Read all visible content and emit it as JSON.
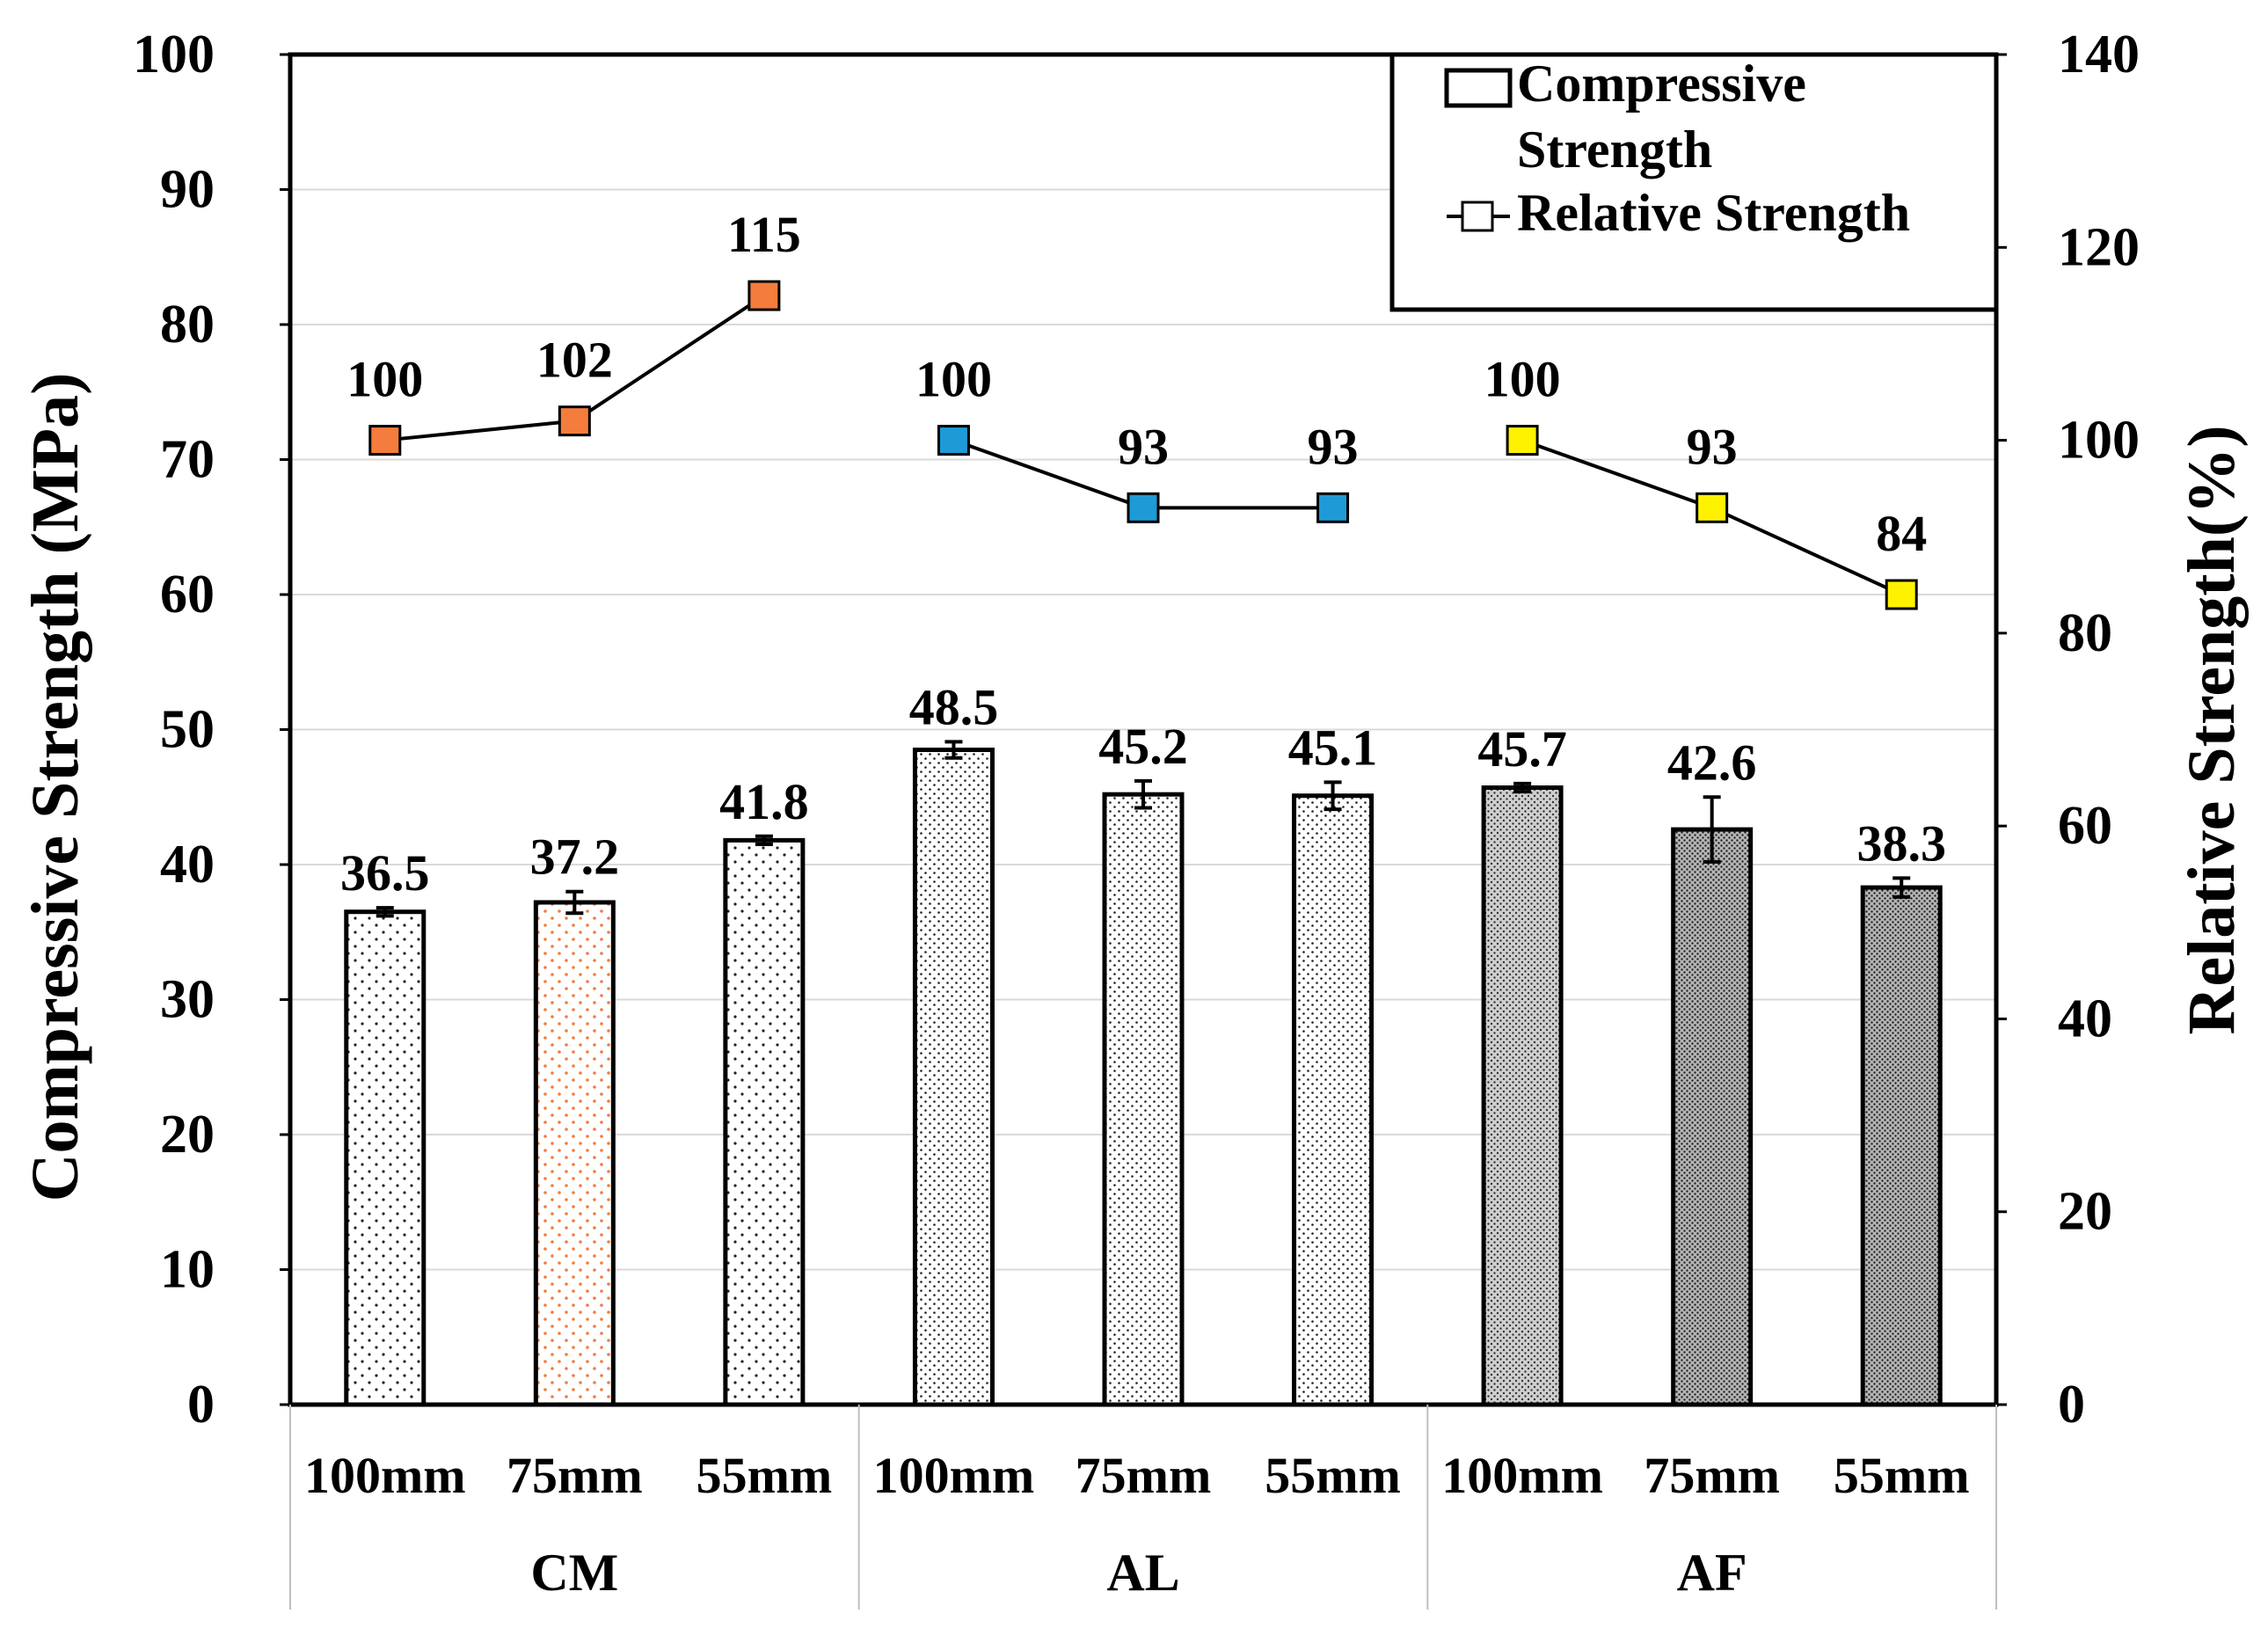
{
  "chart_data": {
    "type": "bar",
    "left_axis": {
      "label": "Compressive Strength (MPa)",
      "ylim": [
        0,
        100
      ],
      "ticks": [
        "0",
        "10",
        "20",
        "30",
        "40",
        "50",
        "60",
        "70",
        "80",
        "90",
        "100"
      ]
    },
    "right_axis": {
      "label": "Relative Strength(%)",
      "ylim": [
        0,
        140
      ],
      "ticks": [
        "0",
        "20",
        "40",
        "60",
        "80",
        "100",
        "120",
        "140"
      ]
    },
    "gridlines": true,
    "categories": [
      "100mm",
      "75mm",
      "55mm",
      "100mm",
      "75mm",
      "55mm",
      "100mm",
      "75mm",
      "55mm"
    ],
    "groups": [
      {
        "name": "CM",
        "start": 0,
        "end": 3
      },
      {
        "name": "AL",
        "start": 3,
        "end": 6
      },
      {
        "name": "AF",
        "start": 6,
        "end": 9
      }
    ],
    "series": [
      {
        "name": "Compressive Strength",
        "type": "bar",
        "axis": "left",
        "values": [
          36.5,
          37.2,
          41.8,
          48.5,
          45.2,
          45.1,
          45.7,
          42.6,
          38.3
        ],
        "labels": [
          "36.5",
          "37.2",
          "41.8",
          "48.5",
          "45.2",
          "45.1",
          "45.7",
          "42.6",
          "38.3"
        ],
        "errors": [
          0.3,
          0.8,
          0.3,
          0.6,
          1.0,
          1.0,
          0.3,
          2.4,
          0.7
        ]
      },
      {
        "name": "Relative Strength",
        "type": "line",
        "axis": "right",
        "values": [
          100,
          102,
          115,
          100,
          93,
          93,
          100,
          93,
          84
        ],
        "labels": [
          "100",
          "102",
          "115",
          "100",
          "93",
          "93",
          "100",
          "93",
          "84"
        ]
      }
    ],
    "marker_colors": [
      "#f47c3c",
      "#f47c3c",
      "#f47c3c",
      "#1e9ad6",
      "#1e9ad6",
      "#1e9ad6",
      "#fff200",
      "#fff200",
      "#fff200"
    ],
    "legend": {
      "position": "top-right",
      "entries": [
        {
          "line1": "Compressive",
          "line2": "Strength"
        },
        {
          "line1": "Relative Strength",
          "line2": ""
        }
      ]
    }
  }
}
